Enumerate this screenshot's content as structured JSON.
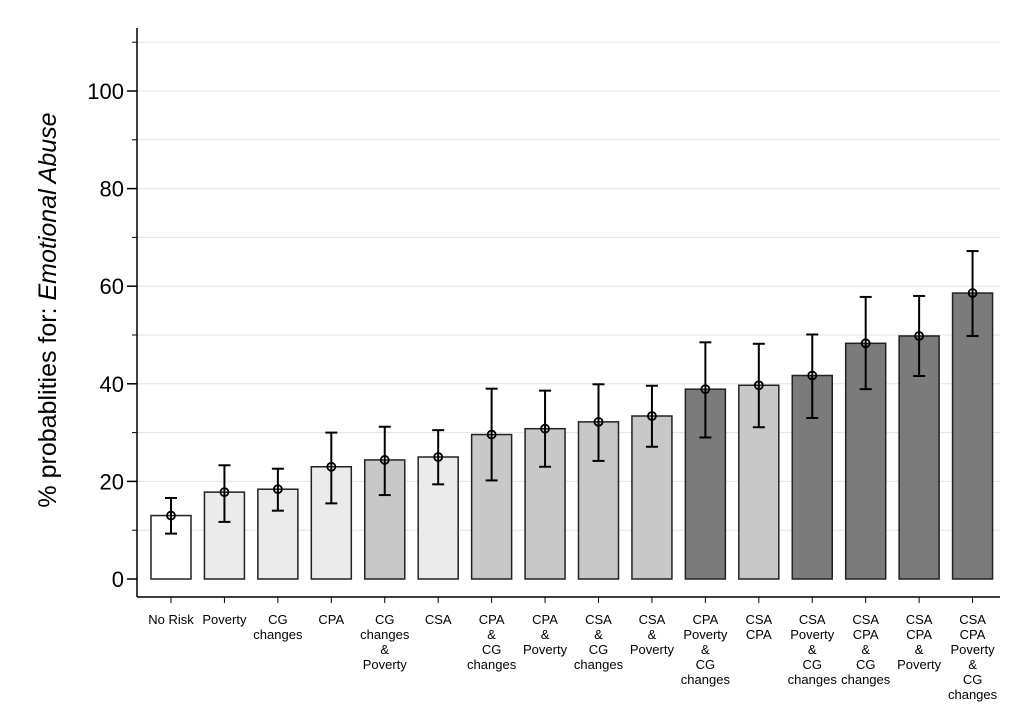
{
  "chart_data": {
    "type": "bar",
    "title": "",
    "xlabel": "",
    "ylabel_prefix": "% probablities for: ",
    "ylabel_emph": "Emotional Abuse",
    "ylim": [
      0,
      110
    ],
    "yticks": [
      "0",
      "20",
      "40",
      "60",
      "80",
      "100"
    ],
    "grid": true,
    "colors": {
      "none": "#ffffff",
      "light": "#ebebeb",
      "mid": "#c8c8c8",
      "dark": "#7b7b7b"
    },
    "categories": [
      {
        "lines": [
          "No Risk"
        ],
        "value": 13.0,
        "ci": [
          9.3,
          16.6
        ],
        "shade": "none"
      },
      {
        "lines": [
          "Poverty"
        ],
        "value": 17.8,
        "ci": [
          11.7,
          23.3
        ],
        "shade": "light"
      },
      {
        "lines": [
          "CG",
          "changes"
        ],
        "value": 18.4,
        "ci": [
          14.0,
          22.6
        ],
        "shade": "light"
      },
      {
        "lines": [
          "CPA"
        ],
        "value": 23.0,
        "ci": [
          15.5,
          30.0
        ],
        "shade": "light"
      },
      {
        "lines": [
          "CG",
          "changes",
          "&",
          "Poverty"
        ],
        "value": 24.4,
        "ci": [
          17.2,
          31.2
        ],
        "shade": "mid"
      },
      {
        "lines": [
          "CSA"
        ],
        "value": 25.0,
        "ci": [
          19.4,
          30.5
        ],
        "shade": "light"
      },
      {
        "lines": [
          "CPA",
          "&",
          "CG",
          "changes"
        ],
        "value": 29.6,
        "ci": [
          20.2,
          39.0
        ],
        "shade": "mid"
      },
      {
        "lines": [
          "CPA",
          "&",
          "Poverty"
        ],
        "value": 30.8,
        "ci": [
          23.0,
          38.6
        ],
        "shade": "mid"
      },
      {
        "lines": [
          "CSA",
          "&",
          "CG",
          "changes"
        ],
        "value": 32.2,
        "ci": [
          24.2,
          39.9
        ],
        "shade": "mid"
      },
      {
        "lines": [
          "CSA",
          "&",
          "Poverty"
        ],
        "value": 33.4,
        "ci": [
          27.1,
          39.6
        ],
        "shade": "mid"
      },
      {
        "lines": [
          "CPA",
          "Poverty",
          "&",
          "CG",
          "changes"
        ],
        "value": 38.9,
        "ci": [
          29.0,
          48.5
        ],
        "shade": "dark"
      },
      {
        "lines": [
          "CSA",
          "CPA"
        ],
        "value": 39.7,
        "ci": [
          31.1,
          48.2
        ],
        "shade": "mid"
      },
      {
        "lines": [
          "CSA",
          "Poverty",
          "&",
          "CG",
          "changes"
        ],
        "value": 41.7,
        "ci": [
          33.0,
          50.1
        ],
        "shade": "dark"
      },
      {
        "lines": [
          "CSA",
          "CPA",
          "&",
          "CG",
          "changes"
        ],
        "value": 48.3,
        "ci": [
          38.9,
          57.8
        ],
        "shade": "dark"
      },
      {
        "lines": [
          "CSA",
          "CPA",
          "&",
          "Poverty"
        ],
        "value": 49.8,
        "ci": [
          41.6,
          58.0
        ],
        "shade": "dark"
      },
      {
        "lines": [
          "CSA",
          "CPA",
          "Poverty",
          "&",
          "CG",
          "changes"
        ],
        "value": 58.6,
        "ci": [
          49.8,
          67.2
        ],
        "shade": "dark"
      }
    ]
  }
}
